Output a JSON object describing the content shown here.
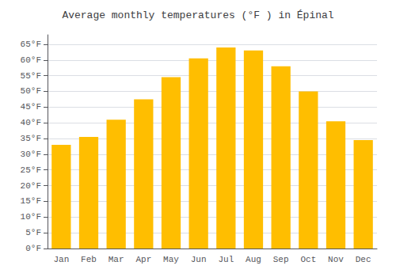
{
  "chart_data": {
    "type": "bar",
    "title": "Average monthly temperatures (°F ) in Épinal",
    "categories": [
      "Jan",
      "Feb",
      "Mar",
      "Apr",
      "May",
      "Jun",
      "Jul",
      "Aug",
      "Sep",
      "Oct",
      "Nov",
      "Dec"
    ],
    "values": [
      33,
      35.5,
      41,
      47.5,
      54.5,
      60.5,
      64,
      63,
      58,
      50,
      40.5,
      34.5
    ],
    "color": "#FFBE00",
    "ylim": [
      0,
      68
    ],
    "yticks": [
      {
        "value": 0,
        "label": "0°F"
      },
      {
        "value": 5,
        "label": "5°F"
      },
      {
        "value": 10,
        "label": "10°F"
      },
      {
        "value": 15,
        "label": "15°F"
      },
      {
        "value": 20,
        "label": "20°F"
      },
      {
        "value": 25,
        "label": "25°F"
      },
      {
        "value": 30,
        "label": "30°F"
      },
      {
        "value": 35,
        "label": "35°F"
      },
      {
        "value": 40,
        "label": "40°F"
      },
      {
        "value": 45,
        "label": "45°F"
      },
      {
        "value": 50,
        "label": "50°F"
      },
      {
        "value": 55,
        "label": "55°F"
      },
      {
        "value": 60,
        "label": "60°F"
      },
      {
        "value": 65,
        "label": "65°F"
      }
    ],
    "grid": true
  }
}
